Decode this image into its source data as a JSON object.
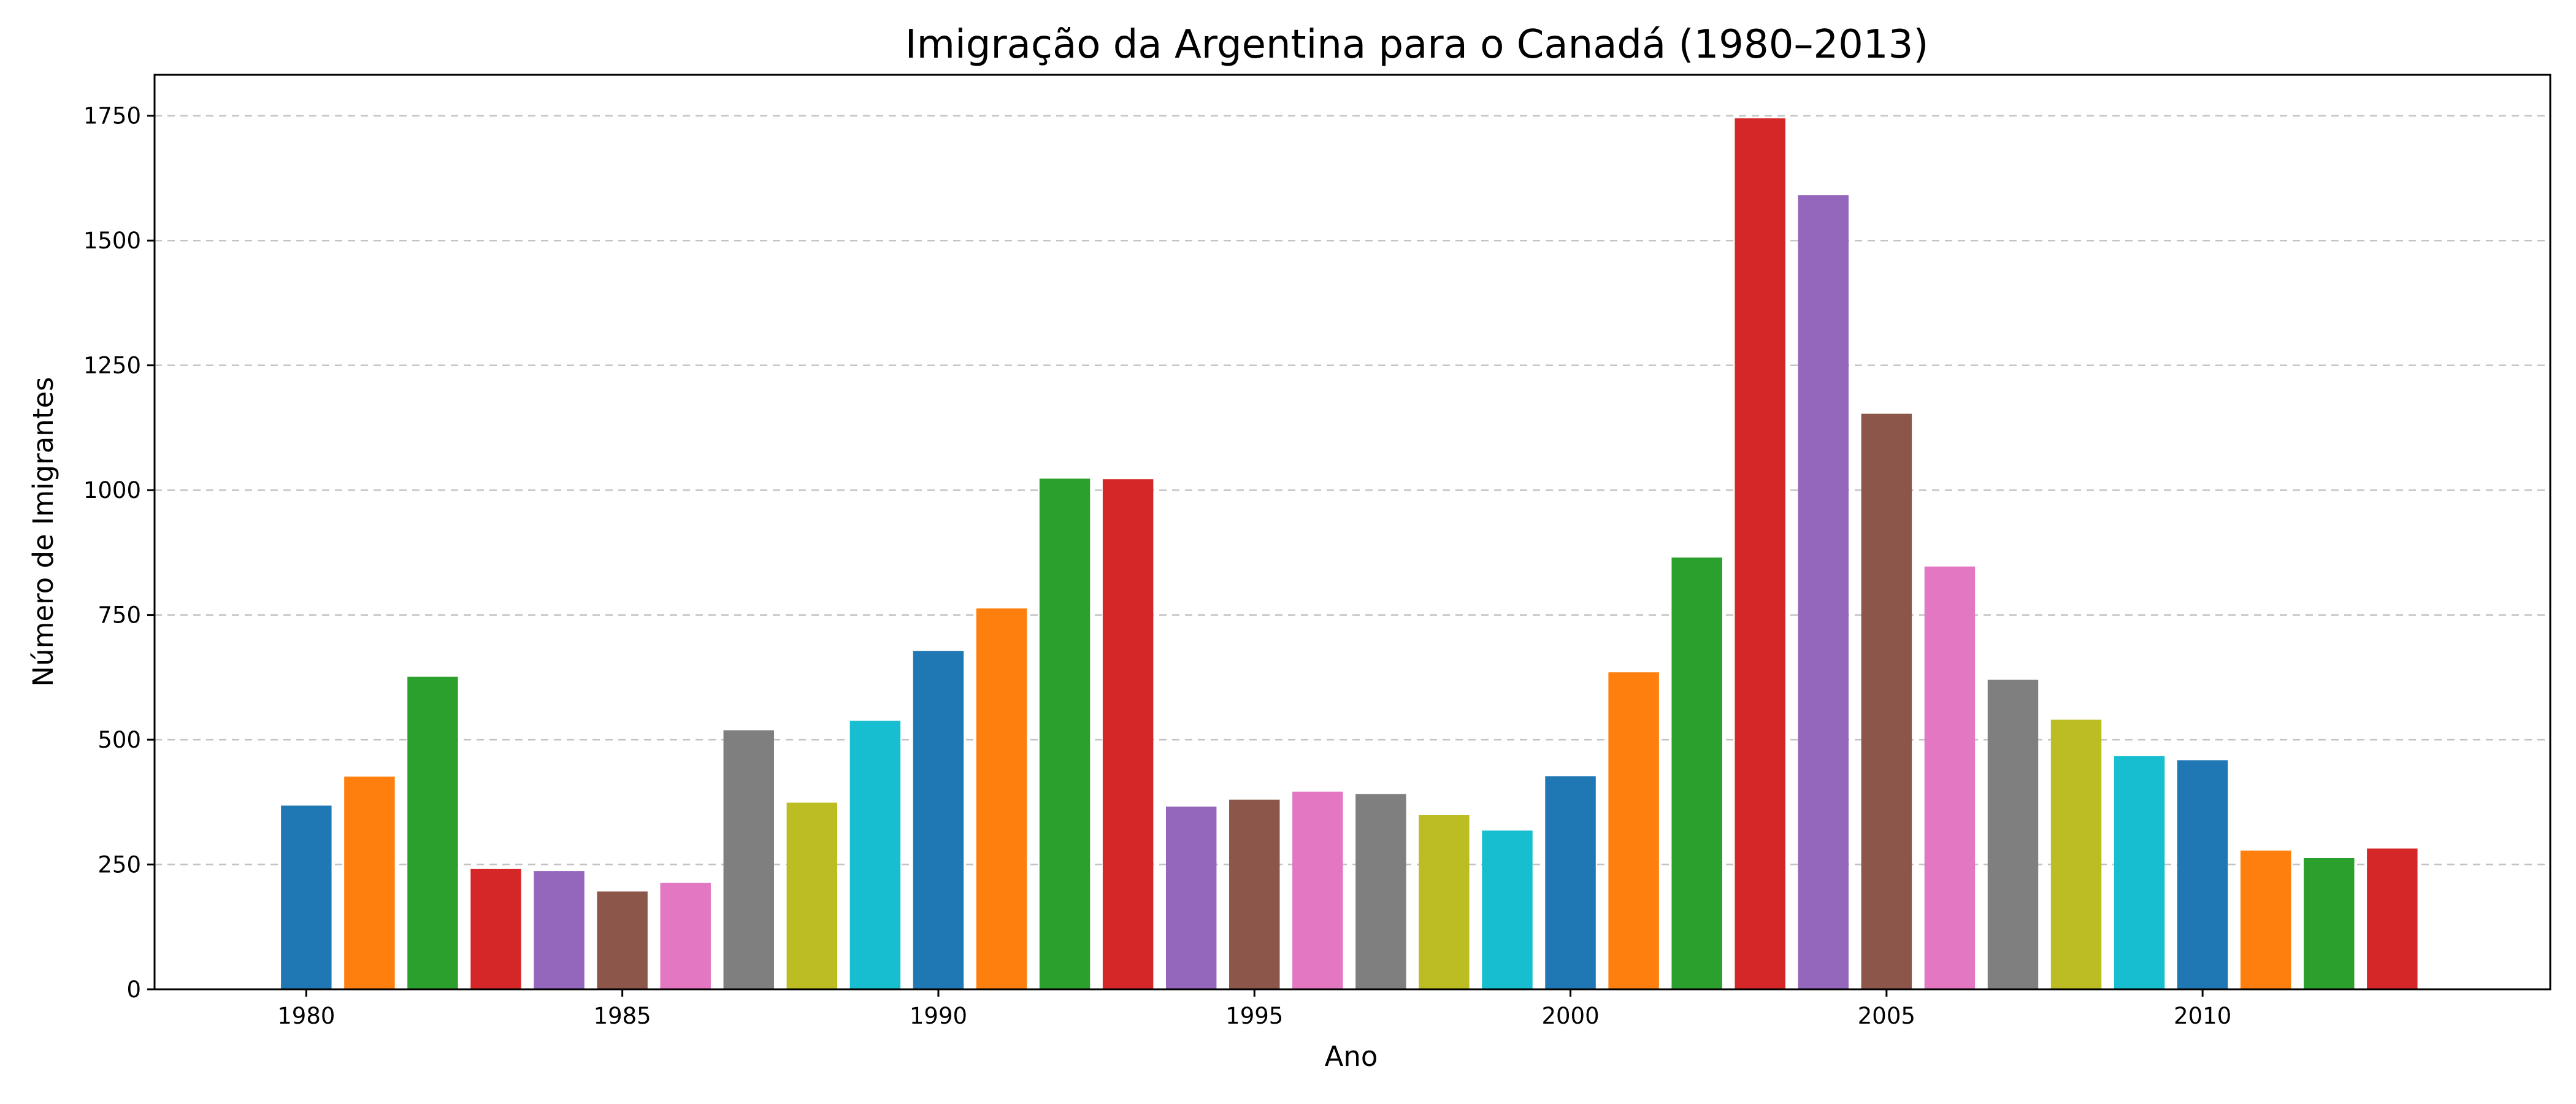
{
  "chart_data": {
    "type": "bar",
    "title": "Imigração da Argentina para o Canadá (1980–2013)",
    "xlabel": "Ano",
    "ylabel": "Número de Imigrantes",
    "x": [
      1980,
      1981,
      1982,
      1983,
      1984,
      1985,
      1986,
      1987,
      1988,
      1989,
      1990,
      1991,
      1992,
      1993,
      1994,
      1995,
      1996,
      1997,
      1998,
      1999,
      2000,
      2001,
      2002,
      2003,
      2004,
      2005,
      2006,
      2007,
      2008,
      2009,
      2010,
      2011,
      2012,
      2013
    ],
    "values": [
      368,
      426,
      626,
      241,
      237,
      196,
      213,
      519,
      374,
      538,
      678,
      763,
      1023,
      1022,
      366,
      380,
      396,
      391,
      349,
      318,
      427,
      635,
      865,
      1745,
      1591,
      1153,
      847,
      620,
      540,
      467,
      459,
      278,
      263,
      282
    ],
    "colors": [
      "#1f77b4",
      "#ff7f0e",
      "#2ca02c",
      "#d62728",
      "#9467bd",
      "#8c564b",
      "#e377c2",
      "#7f7f7f",
      "#bcbd22",
      "#17becf"
    ],
    "xticks": [
      1980,
      1985,
      1990,
      1995,
      2000,
      2005,
      2010
    ],
    "yticks": [
      0,
      250,
      500,
      750,
      1000,
      1250,
      1500,
      1750
    ],
    "xlim": [
      1977.6,
      2015.5
    ],
    "ylim": [
      0,
      1832
    ],
    "grid": "y-dashed"
  }
}
